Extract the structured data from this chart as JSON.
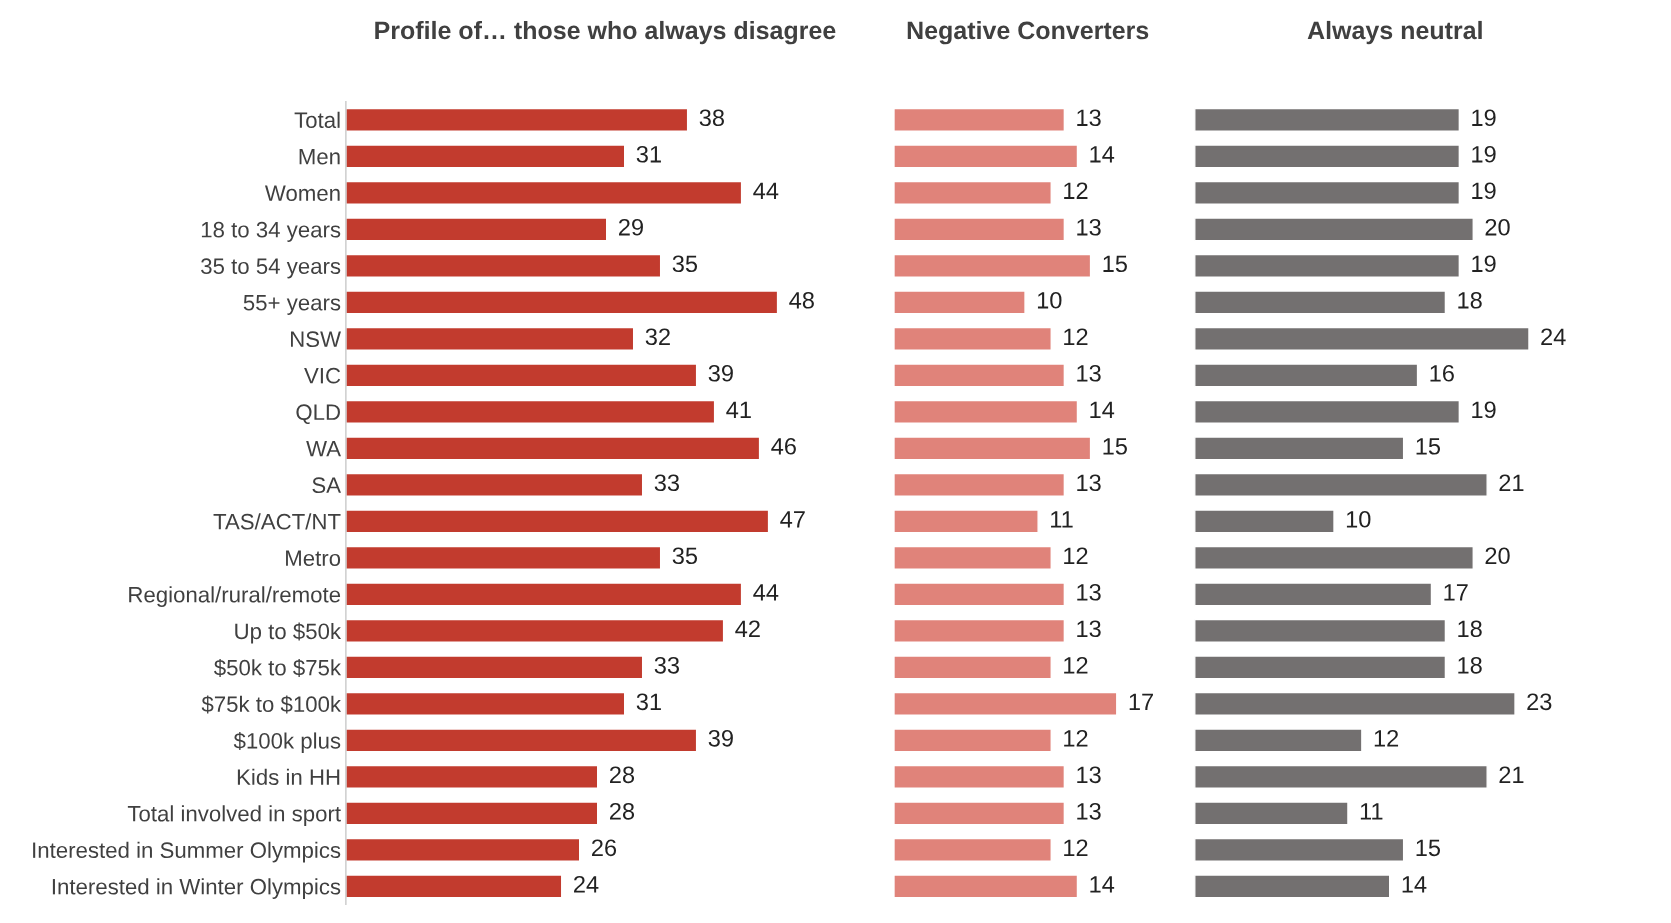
{
  "chart_data": [
    {
      "type": "bar",
      "orientation": "horizontal",
      "title": "Profile of… those who always disagree",
      "data_labels": true,
      "tick_labels": "y",
      "color": "#c23b2e",
      "categories": [
        "Total",
        "Men",
        "Women",
        "18 to 34 years",
        "35 to 54 years",
        "55+ years",
        "NSW",
        "VIC",
        "QLD",
        "WA",
        "SA",
        "TAS/ACT/NT",
        "Metro",
        "Regional/rural/remote",
        "Up to $50k",
        "$50k to $75k",
        "$75k to $100k",
        "$100k plus",
        "Kids in HH",
        "Total involved in sport",
        "Interested in Summer Olympics",
        "Interested in Winter Olympics"
      ],
      "values": [
        38,
        31,
        44,
        29,
        35,
        48,
        32,
        39,
        41,
        46,
        33,
        47,
        35,
        44,
        42,
        33,
        31,
        39,
        28,
        28,
        26,
        24
      ]
    },
    {
      "type": "bar",
      "orientation": "horizontal",
      "title": "Negative Converters",
      "data_labels": true,
      "tick_labels": false,
      "color": "#e0837a",
      "categories": [
        null,
        null,
        null,
        null,
        null,
        null,
        null,
        null,
        null,
        null,
        null,
        null,
        null,
        null,
        null,
        null,
        null,
        null,
        null,
        null,
        null,
        null
      ],
      "values": [
        13,
        14,
        12,
        13,
        15,
        10,
        12,
        13,
        14,
        15,
        13,
        11,
        12,
        13,
        13,
        12,
        17,
        12,
        13,
        13,
        12,
        14
      ]
    },
    {
      "type": "bar",
      "orientation": "horizontal",
      "title": "Always neutral",
      "data_labels": true,
      "tick_labels": false,
      "color": "#737070",
      "categories": [
        null,
        null,
        null,
        null,
        null,
        null,
        null,
        null,
        null,
        null,
        null,
        null,
        null,
        null,
        null,
        null,
        null,
        null,
        null,
        null,
        null,
        null
      ],
      "values": [
        19,
        19,
        19,
        20,
        19,
        18,
        24,
        16,
        19,
        15,
        21,
        10,
        20,
        17,
        18,
        18,
        23,
        12,
        21,
        11,
        15,
        14
      ]
    }
  ]
}
